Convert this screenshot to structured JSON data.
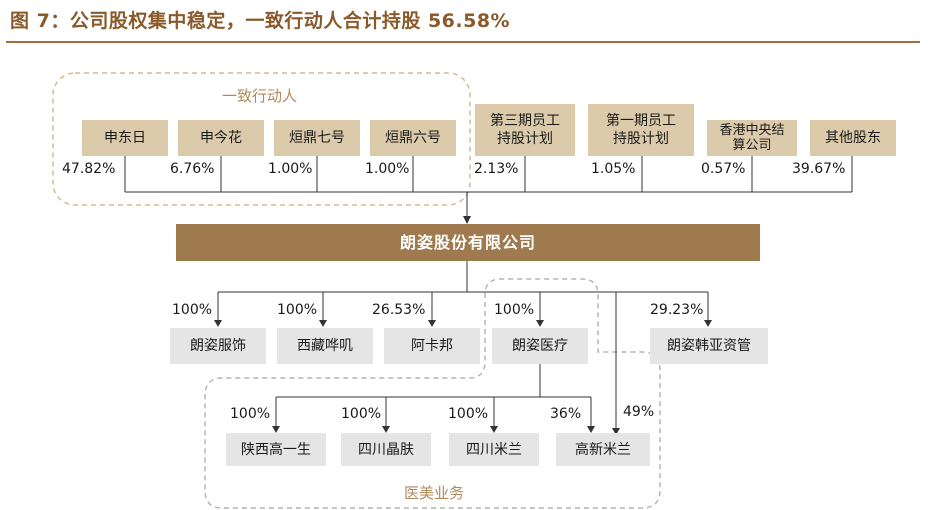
{
  "title": "图 7：公司股权集中稳定，一致行动人合计持股 56.58%",
  "groups": {
    "concert": "一致行动人",
    "medical": "医美业务"
  },
  "shareholders": [
    {
      "name": "申东日",
      "pct": "47.82%"
    },
    {
      "name": "申今花",
      "pct": "6.76%"
    },
    {
      "name": "烜鼎七号",
      "pct": "1.00%"
    },
    {
      "name": "烜鼎六号",
      "pct": "1.00%"
    },
    {
      "name": "第三期员工持股计划",
      "pct": "2.13%"
    },
    {
      "name": "第一期员工持股计划",
      "pct": "1.05%"
    },
    {
      "name": "香港中央结算公司",
      "pct": "0.57%"
    },
    {
      "name": "其他股东",
      "pct": "39.67%"
    }
  ],
  "company": "朗姿股份有限公司",
  "subsidiaries": [
    {
      "name": "朗姿服饰",
      "pct": "100%"
    },
    {
      "name": "西藏哗叽",
      "pct": "100%"
    },
    {
      "name": "阿卡邦",
      "pct": "26.53%"
    },
    {
      "name": "朗姿医疗",
      "pct": "100%"
    },
    {
      "name": "朗姿韩亚资管",
      "pct": "29.23%"
    }
  ],
  "medical_units": [
    {
      "name": "陕西高一生",
      "pct": "100%"
    },
    {
      "name": "四川晶肤",
      "pct": "100%"
    },
    {
      "name": "四川米兰",
      "pct": "100%"
    },
    {
      "name": "高新米兰",
      "pct": "36%",
      "pct2": "49%"
    }
  ],
  "colors": {
    "title": "#8a5a2b",
    "shareholder_box": "#dccbab",
    "company_box": "#a07a4f",
    "subsidiary_box": "#e5e5e5",
    "dashed_border": "#d9b98f",
    "grey_dashed_border": "#b5b5b5"
  }
}
